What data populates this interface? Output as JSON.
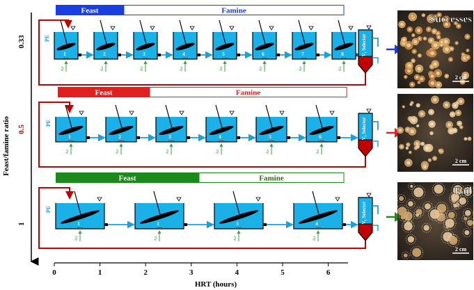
{
  "y_axis_label": "Feast/famine ratio",
  "x_axis_label": "HRT (hours)",
  "x_ticks": [
    "0",
    "1",
    "2",
    "3",
    "4",
    "5",
    "6"
  ],
  "tank_input_label": "PE",
  "air_label": "Air",
  "selector_label": "V₁ Selector",
  "scale_label": "2 cm",
  "colors": {
    "tank": "#1ab0e8",
    "pipe": "#1e9fd8",
    "return": "#c00000",
    "air": "#3aa043",
    "feast_blue": "#1a3ee0",
    "feast_red": "#e02020",
    "feast_green": "#1a8a1a"
  },
  "rows": [
    {
      "ratio": "0.33",
      "feast": "Feast",
      "famine": "Famine",
      "theme": "blue",
      "tank_labels": [
        "1",
        "2",
        "3",
        "4",
        "5",
        "6",
        "7",
        "8"
      ],
      "photo_label": "Successes",
      "arrow_color": "#1a3ee0"
    },
    {
      "ratio": "0.5",
      "feast": "Feast",
      "famine": "Famine",
      "theme": "red",
      "tank_labels": [
        "1",
        "2",
        "3",
        "4",
        "5",
        "6"
      ],
      "photo_label": "",
      "arrow_color": "#e02020"
    },
    {
      "ratio": "1",
      "feast": "Feast",
      "famine": "Famine",
      "theme": "green",
      "tank_labels": [
        "1",
        "2",
        "3",
        "4"
      ],
      "photo_label": "Fail",
      "arrow_color": "#1a8a1a"
    }
  ]
}
